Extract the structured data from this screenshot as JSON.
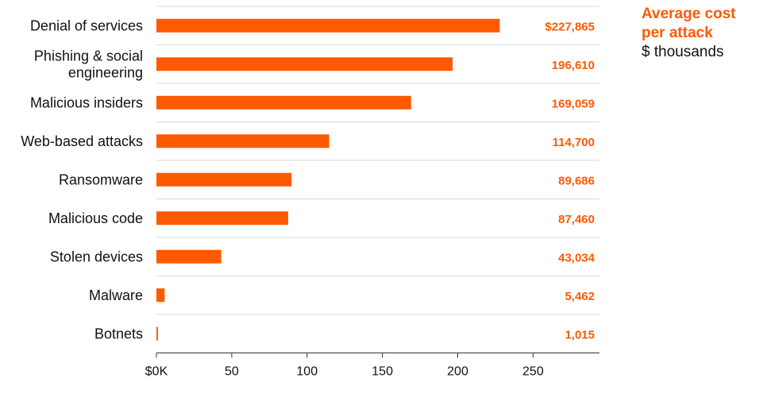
{
  "colors": {
    "accent": "#ff5a00",
    "grid": "#d9d9d9",
    "axis": "#333333"
  },
  "legend": {
    "title_line1": "Average cost",
    "title_line2": "per attack",
    "unit": "$ thousands"
  },
  "chart_data": {
    "type": "bar",
    "orientation": "horizontal",
    "categories": [
      [
        "Denial of services"
      ],
      [
        "Phishing & social",
        "engineering"
      ],
      [
        "Malicious insiders"
      ],
      [
        "Web-based attacks"
      ],
      [
        "Ransomware"
      ],
      [
        "Malicious code"
      ],
      [
        "Stolen devices"
      ],
      [
        "Malware"
      ],
      [
        "Botnets"
      ]
    ],
    "values": [
      227.865,
      196.61,
      169.059,
      114.7,
      89.686,
      87.46,
      43.034,
      5.462,
      1.015
    ],
    "value_labels": [
      "$227,865",
      "196,610",
      "169,059",
      "114,700",
      "89,686",
      "87,460",
      "43,034",
      "5,462",
      "1,015"
    ],
    "xlim": [
      0,
      295
    ],
    "x_ticks": [
      0,
      50,
      100,
      150,
      200,
      250
    ],
    "x_tick_labels": [
      "$0K",
      "50",
      "100",
      "150",
      "200",
      "250"
    ],
    "grid": "horizontal separators"
  }
}
